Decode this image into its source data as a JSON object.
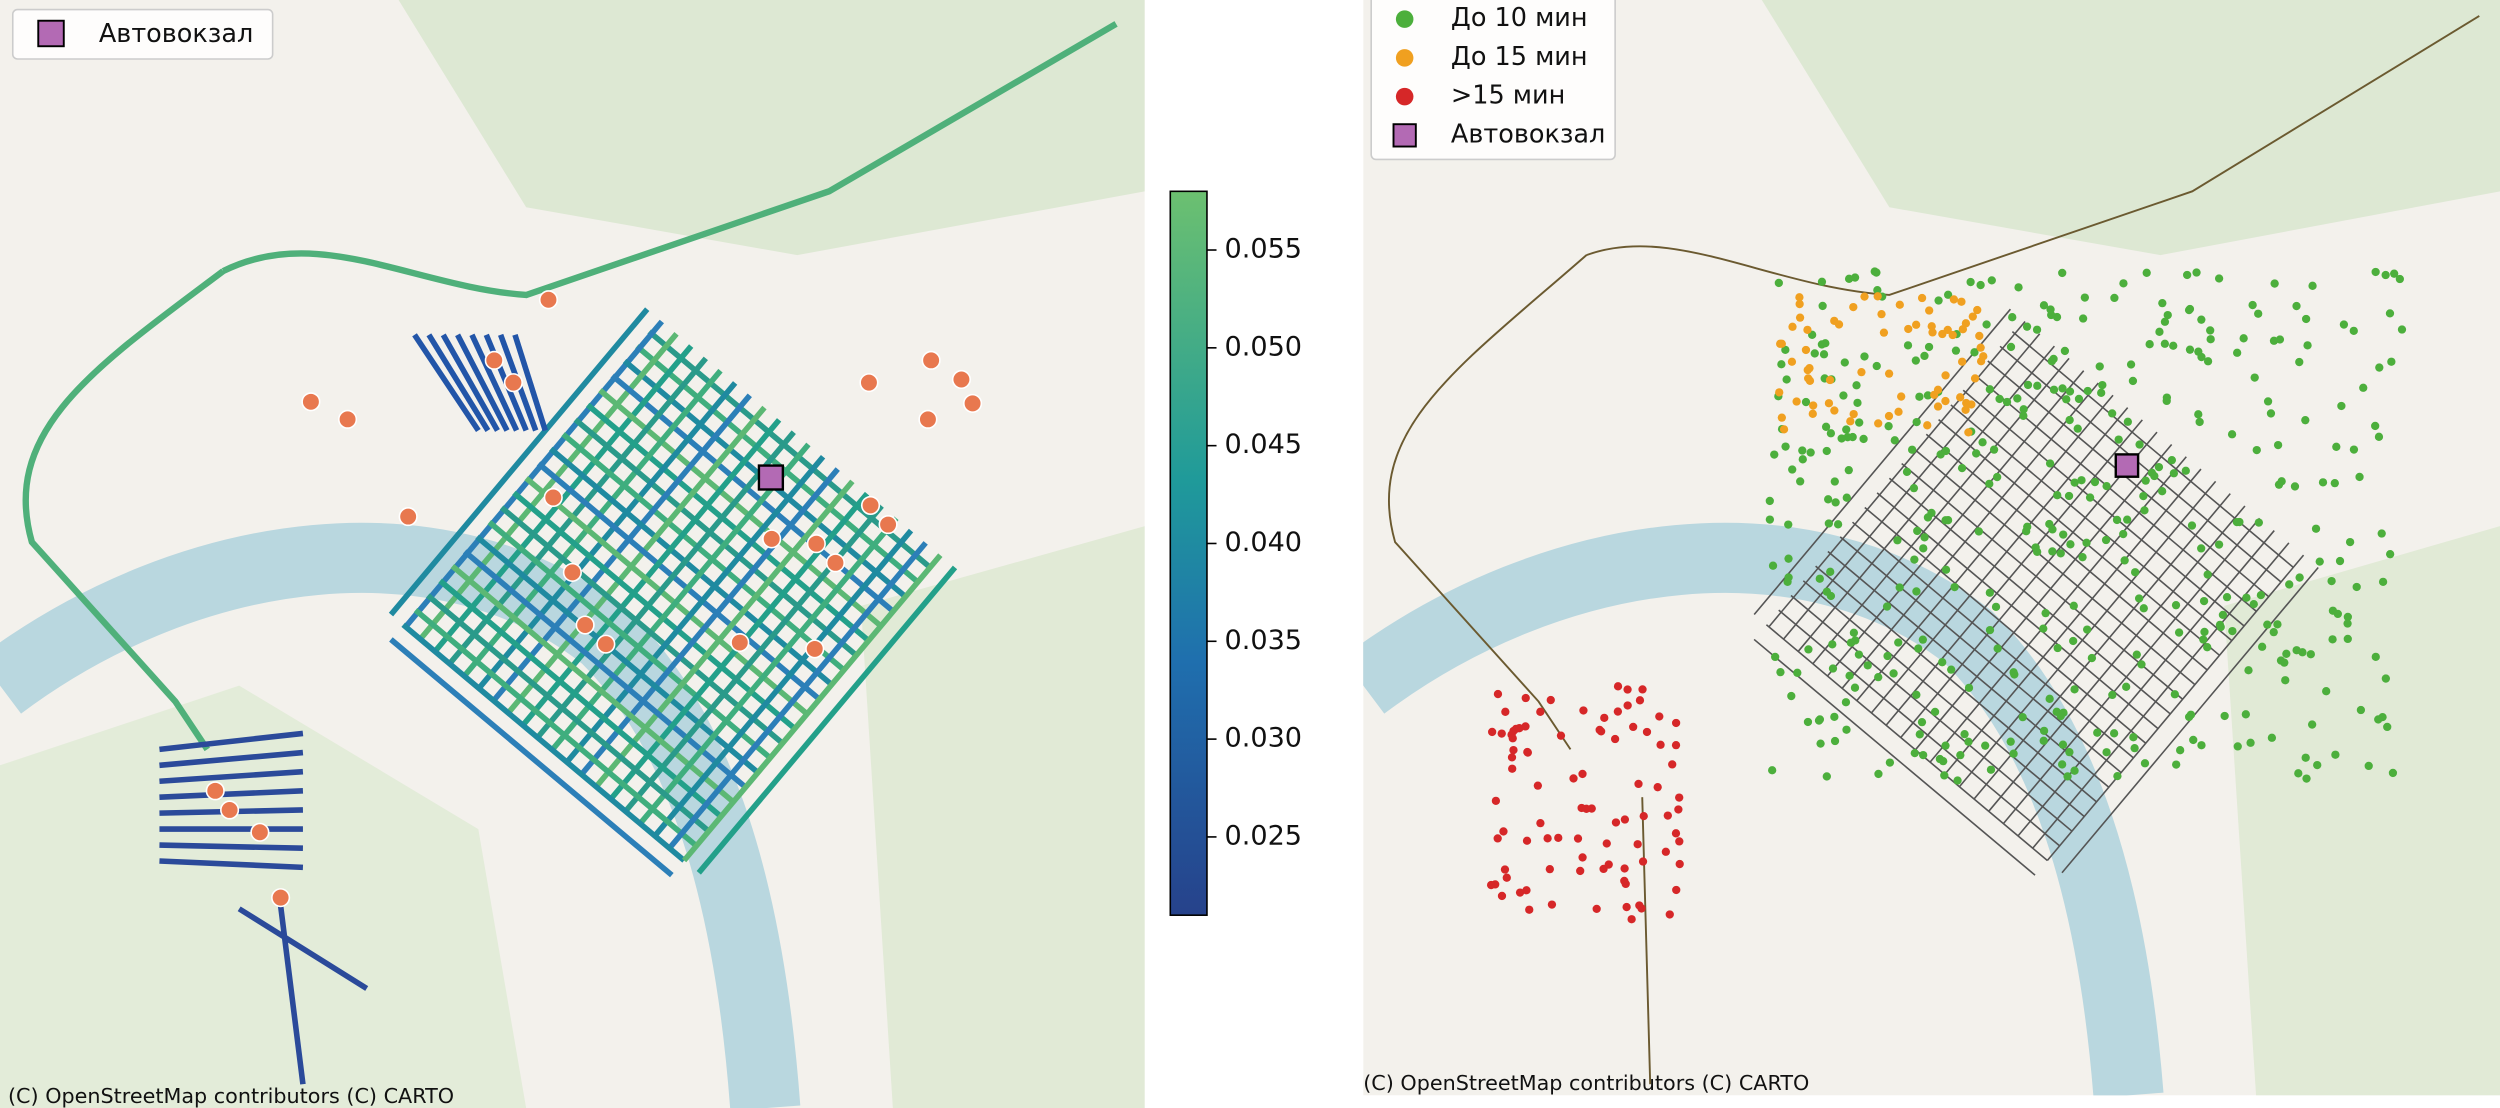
{
  "left_map": {
    "legend": [
      "Автовокзал"
    ],
    "colorbar": {
      "lim": [
        0.021,
        0.058
      ],
      "ticks": [
        0.025,
        {
          "value": 0.03,
          "label": "0.030"
        },
        0.035,
        {
          "value": 0.04,
          "label": "0.040"
        },
        0.045,
        {
          "value": 0.05,
          "label": "0.050"
        },
        0.055
      ]
    },
    "attribution": "(C) OpenStreetMap contributors (C) CARTO"
  },
  "right_map": {
    "legend": [
      {
        "label": "До 10 мин",
        "color": "#4caf3c"
      },
      {
        "label": "До 15 мин",
        "color": "#f0a020"
      },
      {
        "label": ">15 мин",
        "color": "#d62728"
      },
      {
        "label": "Автовокзал",
        "color": "#b36ab4"
      }
    ],
    "attribution": "(C) OpenStreetMap contributors (C) CARTO"
  }
}
